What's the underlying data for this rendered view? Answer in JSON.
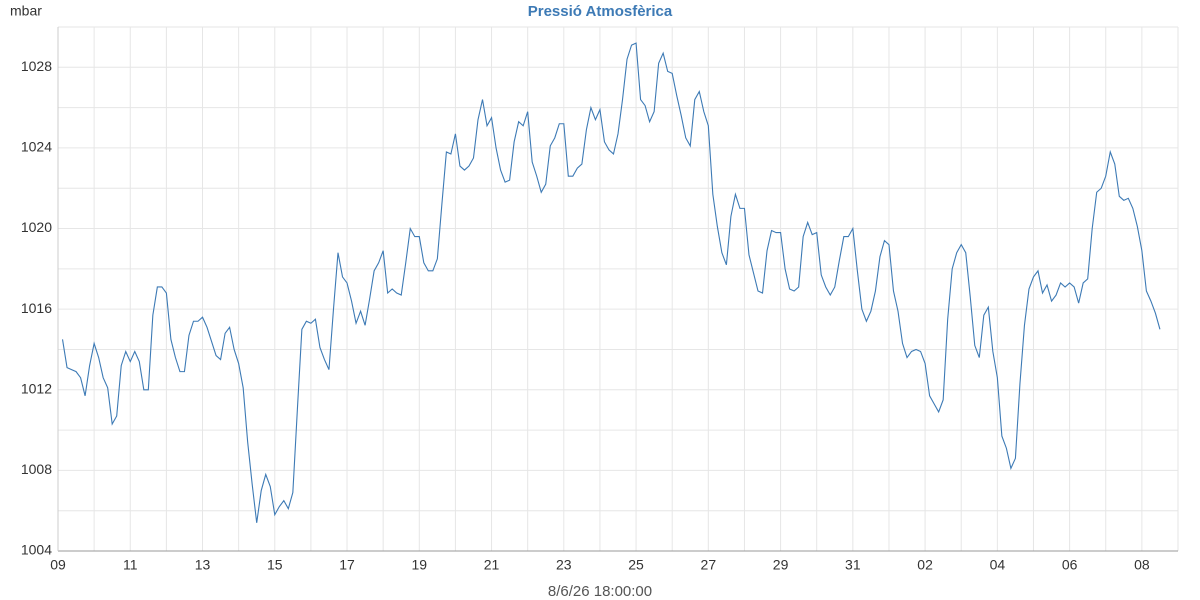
{
  "chart_data": {
    "type": "line",
    "title": "Pressió Atmosfèrica",
    "y_label": "mbar",
    "x_label": "8/6/26 18:00:00",
    "x": [
      0.125,
      0.25,
      0.375,
      0.5,
      0.625,
      0.75,
      0.875,
      1,
      1.125,
      1.25,
      1.375,
      1.5,
      1.625,
      1.75,
      1.875,
      2,
      2.125,
      2.25,
      2.375,
      2.5,
      2.625,
      2.75,
      2.875,
      3,
      3.125,
      3.25,
      3.375,
      3.5,
      3.625,
      3.75,
      3.875,
      4,
      4.125,
      4.25,
      4.375,
      4.5,
      4.625,
      4.75,
      4.875,
      5,
      5.125,
      5.25,
      5.375,
      5.5,
      5.625,
      5.75,
      5.875,
      6,
      6.125,
      6.25,
      6.375,
      6.5,
      6.625,
      6.75,
      6.875,
      7,
      7.125,
      7.25,
      7.375,
      7.5,
      7.625,
      7.75,
      7.875,
      8,
      8.125,
      8.25,
      8.375,
      8.5,
      8.625,
      8.75,
      8.875,
      9,
      9.125,
      9.25,
      9.375,
      9.5,
      9.625,
      9.75,
      9.875,
      10,
      10.125,
      10.25,
      10.375,
      10.5,
      10.625,
      10.75,
      10.875,
      11,
      11.125,
      11.25,
      11.375,
      11.5,
      11.625,
      11.75,
      11.875,
      12,
      12.125,
      12.25,
      12.375,
      12.5,
      12.625,
      12.75,
      12.875,
      13,
      13.125,
      13.25,
      13.375,
      13.5,
      13.625,
      13.75,
      13.875,
      14,
      14.125,
      14.25,
      14.375,
      14.5,
      14.625,
      14.75,
      14.875,
      15,
      15.125,
      15.25,
      15.375,
      15.5,
      15.625,
      15.75,
      15.875,
      16,
      16.125,
      16.25,
      16.375,
      16.5,
      16.625,
      16.75,
      16.875,
      17,
      17.125,
      17.25,
      17.375,
      17.5,
      17.625,
      17.75,
      17.875,
      18,
      18.125,
      18.25,
      18.375,
      18.5,
      18.625,
      18.75,
      18.875,
      19,
      19.125,
      19.25,
      19.375,
      19.5,
      19.625,
      19.75,
      19.875,
      20,
      20.125,
      20.25,
      20.375,
      20.5,
      20.625,
      20.75,
      20.875,
      21,
      21.125,
      21.25,
      21.375,
      21.5,
      21.625,
      21.75,
      21.875,
      22,
      22.125,
      22.25,
      22.375,
      22.5,
      22.625,
      22.75,
      22.875,
      23,
      23.125,
      23.25,
      23.375,
      23.5,
      23.625,
      23.75,
      23.875,
      24,
      24.125,
      24.25,
      24.375,
      24.5,
      24.625,
      24.75,
      24.875,
      25,
      25.125,
      25.25,
      25.375,
      25.5,
      25.625,
      25.75,
      25.875,
      26,
      26.125,
      26.25,
      26.375,
      26.5,
      26.625,
      26.75,
      26.875,
      27,
      27.125,
      27.25,
      27.375,
      27.5,
      27.625,
      27.75,
      27.875,
      28,
      28.125,
      28.25,
      28.375,
      28.5,
      28.625,
      28.75,
      28.875,
      29,
      29.125,
      29.25,
      29.375,
      29.5,
      29.625,
      29.75,
      29.875,
      30,
      30.125,
      30.25,
      30.375,
      30.5
    ],
    "series": [
      {
        "name": "Pressió",
        "color": "#3d7ab5",
        "values": [
          1014.5,
          1013.1,
          1013.0,
          1012.9,
          1012.6,
          1011.7,
          1013.2,
          1014.3,
          1013.6,
          1012.6,
          1012.1,
          1010.3,
          1010.7,
          1013.2,
          1013.9,
          1013.4,
          1013.9,
          1013.4,
          1012.0,
          1012.0,
          1015.7,
          1017.1,
          1017.1,
          1016.8,
          1014.5,
          1013.6,
          1012.9,
          1012.9,
          1014.7,
          1015.4,
          1015.4,
          1015.6,
          1015.1,
          1014.4,
          1013.7,
          1013.5,
          1014.8,
          1015.1,
          1014.0,
          1013.3,
          1012.1,
          1009.4,
          1007.3,
          1005.4,
          1007.0,
          1007.8,
          1007.2,
          1005.8,
          1006.2,
          1006.5,
          1006.1,
          1006.9,
          1011.0,
          1015.0,
          1015.4,
          1015.3,
          1015.5,
          1014.1,
          1013.5,
          1013.0,
          1016.0,
          1018.8,
          1017.6,
          1017.3,
          1016.4,
          1015.3,
          1015.9,
          1015.2,
          1016.5,
          1017.9,
          1018.3,
          1018.9,
          1016.8,
          1017.0,
          1016.8,
          1016.7,
          1018.3,
          1020.0,
          1019.6,
          1019.6,
          1018.3,
          1017.9,
          1017.9,
          1018.5,
          1021.2,
          1023.8,
          1023.7,
          1024.7,
          1023.1,
          1022.9,
          1023.1,
          1023.5,
          1025.4,
          1026.4,
          1025.1,
          1025.5,
          1024.0,
          1022.9,
          1022.3,
          1022.4,
          1024.3,
          1025.3,
          1025.1,
          1025.8,
          1023.3,
          1022.6,
          1021.8,
          1022.2,
          1024.1,
          1024.5,
          1025.2,
          1025.2,
          1022.6,
          1022.6,
          1023.0,
          1023.2,
          1024.9,
          1026.0,
          1025.4,
          1025.9,
          1024.3,
          1023.9,
          1023.7,
          1024.7,
          1026.4,
          1028.4,
          1029.1,
          1029.2,
          1026.4,
          1026.1,
          1025.3,
          1025.8,
          1028.2,
          1028.7,
          1027.8,
          1027.7,
          1026.6,
          1025.6,
          1024.5,
          1024.1,
          1026.4,
          1026.8,
          1025.8,
          1025.1,
          1021.7,
          1020.1,
          1018.8,
          1018.2,
          1020.6,
          1021.7,
          1021.0,
          1021.0,
          1018.7,
          1017.8,
          1016.9,
          1016.8,
          1018.9,
          1019.9,
          1019.8,
          1019.8,
          1018.0,
          1017.0,
          1016.9,
          1017.1,
          1019.6,
          1020.3,
          1019.7,
          1019.8,
          1017.7,
          1017.1,
          1016.7,
          1017.1,
          1018.4,
          1019.6,
          1019.6,
          1020.0,
          1017.9,
          1016.0,
          1015.4,
          1015.9,
          1016.9,
          1018.6,
          1019.4,
          1019.2,
          1016.9,
          1015.9,
          1014.3,
          1013.6,
          1013.9,
          1014.0,
          1013.9,
          1013.3,
          1011.7,
          1011.3,
          1010.9,
          1011.5,
          1015.5,
          1018.0,
          1018.8,
          1019.2,
          1018.8,
          1016.6,
          1014.2,
          1013.6,
          1015.7,
          1016.1,
          1013.9,
          1012.6,
          1009.7,
          1009.1,
          1008.1,
          1008.6,
          1012.3,
          1015.2,
          1017.0,
          1017.6,
          1017.9,
          1016.8,
          1017.2,
          1016.4,
          1016.7,
          1017.3,
          1017.1,
          1017.3,
          1017.1,
          1016.3,
          1017.3,
          1017.5,
          1020.0,
          1021.8,
          1022.0,
          1022.6,
          1023.8,
          1023.2,
          1021.6,
          1021.4,
          1021.5,
          1021.0,
          1020.1,
          1018.9,
          1016.9,
          1016.4,
          1015.8,
          1015.0
        ]
      }
    ],
    "xlim": [
      0,
      31
    ],
    "xticks": [
      {
        "value": 0,
        "label": "09"
      },
      {
        "value": 2,
        "label": "11"
      },
      {
        "value": 4,
        "label": "13"
      },
      {
        "value": 6,
        "label": "15"
      },
      {
        "value": 8,
        "label": "17"
      },
      {
        "value": 10,
        "label": "19"
      },
      {
        "value": 12,
        "label": "21"
      },
      {
        "value": 14,
        "label": "23"
      },
      {
        "value": 16,
        "label": "25"
      },
      {
        "value": 18,
        "label": "27"
      },
      {
        "value": 20,
        "label": "29"
      },
      {
        "value": 22,
        "label": "31"
      },
      {
        "value": 24,
        "label": "02"
      },
      {
        "value": 26,
        "label": "04"
      },
      {
        "value": 28,
        "label": "06"
      },
      {
        "value": 30,
        "label": "08"
      }
    ],
    "ylim": [
      1004,
      1030
    ],
    "yticks": [
      1004,
      1008,
      1012,
      1016,
      1020,
      1024,
      1028
    ],
    "grid": true
  }
}
